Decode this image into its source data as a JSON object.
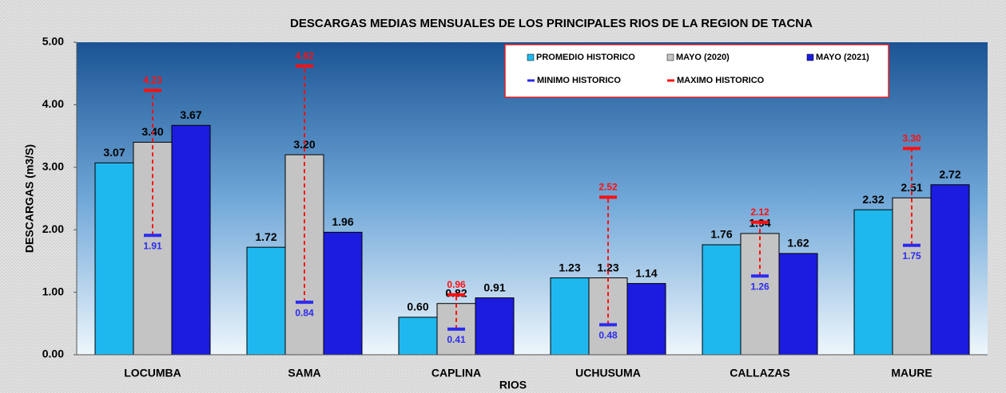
{
  "chart_data": {
    "type": "bar",
    "title": "DESCARGAS MEDIAS MENSUALES DE LOS PRINCIPALES RIOS DE LA REGION DE TACNA",
    "x_label": "RIOS",
    "y_label": "DESCARGAS  (m3/S)",
    "categories": [
      "LOCUMBA",
      "SAMA",
      "CAPLINA",
      "UCHUSUMA",
      "CALLAZAS",
      "MAURE"
    ],
    "series": [
      {
        "name": "PROMEDIO HISTORICO",
        "color": "#1fb8ee",
        "values": [
          3.07,
          1.72,
          0.6,
          1.23,
          1.76,
          2.32
        ],
        "value_labels": [
          "3.07",
          "1.72",
          "0.60",
          "1.23",
          "1.76",
          "2.32"
        ]
      },
      {
        "name": "MAYO (2020)",
        "color": "#c4c4c4",
        "values": [
          3.4,
          3.2,
          0.82,
          1.23,
          1.94,
          2.51
        ],
        "value_labels": [
          "3.40",
          "3.20",
          "0.82",
          "1.23",
          "1.94",
          "2.51"
        ]
      },
      {
        "name": "MAYO (2021)",
        "color": "#1c1ce0",
        "values": [
          3.67,
          1.96,
          0.91,
          1.14,
          1.62,
          2.72
        ],
        "value_labels": [
          "3.67",
          "1.96",
          "0.91",
          "1.14",
          "1.62",
          "2.72"
        ]
      }
    ],
    "markers": [
      {
        "name": "MINIMO HISTORICO",
        "color": "#2b2bef",
        "values": [
          1.91,
          0.84,
          0.41,
          0.48,
          1.26,
          1.75
        ],
        "value_labels": [
          "1.91",
          "0.84",
          "0.41",
          "0.48",
          "1.26",
          "1.75"
        ]
      },
      {
        "name": "MAXIMO HISTORICO",
        "color": "#ff1010",
        "values": [
          4.23,
          4.62,
          0.96,
          2.52,
          2.12,
          3.3
        ],
        "value_labels": [
          "4.23",
          "4.62",
          "0.96",
          "2.52",
          "2.12",
          "3.30"
        ]
      }
    ],
    "ylim": [
      0,
      5
    ],
    "yticks": [
      {
        "value": 0,
        "label": "0.00"
      },
      {
        "value": 1,
        "label": "1.00"
      },
      {
        "value": 2,
        "label": "2.00"
      },
      {
        "value": 3,
        "label": "3.00"
      },
      {
        "value": 4,
        "label": "4.00"
      },
      {
        "value": 5,
        "label": "5.00"
      }
    ],
    "legend": "top-right"
  }
}
